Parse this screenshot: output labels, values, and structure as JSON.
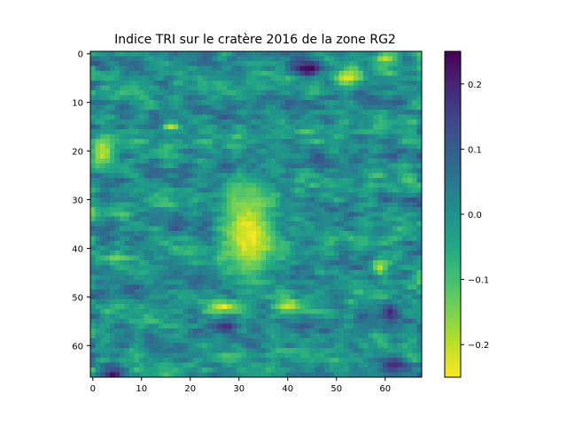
{
  "chart_data": {
    "type": "heatmap",
    "title": "Indice TRI sur le cratère 2016 de la zone RG2",
    "xlabel": "",
    "ylabel": "",
    "grid": false,
    "colormap": "viridis_r",
    "columns": 68,
    "rows": 67,
    "x_ticks": [
      "0",
      "10",
      "20",
      "30",
      "40",
      "50",
      "60"
    ],
    "y_ticks": [
      "0",
      "10",
      "20",
      "30",
      "40",
      "50",
      "60"
    ],
    "value_range": [
      -0.25,
      0.25
    ],
    "colorbar": {
      "ticks": [
        "0.2",
        "0.1",
        "0.0",
        "−0.1",
        "−0.2"
      ],
      "tick_values": [
        0.2,
        0.1,
        0.0,
        -0.1,
        -0.2
      ]
    },
    "features": [
      {
        "label": "low-value plume (crater center)",
        "cx": 32,
        "cy": 37,
        "rx": 6,
        "ry": 11,
        "value": -0.24
      },
      {
        "label": "low-value band",
        "cx": 2,
        "cy": 20,
        "rx": 3,
        "ry": 4,
        "value": -0.2
      },
      {
        "label": "low-value spot",
        "cx": 16,
        "cy": 15,
        "rx": 2,
        "ry": 1,
        "value": -0.22
      },
      {
        "label": "low-value spot",
        "cx": 52,
        "cy": 5,
        "rx": 3,
        "ry": 2,
        "value": -0.22
      },
      {
        "label": "low-value spot",
        "cx": 60,
        "cy": 1,
        "rx": 3,
        "ry": 1.5,
        "value": -0.2
      },
      {
        "label": "low-value streak",
        "cx": 27,
        "cy": 52,
        "rx": 4,
        "ry": 1.5,
        "value": -0.22
      },
      {
        "label": "low-value streak",
        "cx": 40,
        "cy": 52,
        "rx": 3,
        "ry": 1.5,
        "value": -0.22
      },
      {
        "label": "low-value spot",
        "cx": 59,
        "cy": 44,
        "rx": 2,
        "ry": 2,
        "value": -0.2
      },
      {
        "label": "high-value spot",
        "cx": 44,
        "cy": 3,
        "rx": 4,
        "ry": 2,
        "value": 0.24
      },
      {
        "label": "high-value spot",
        "cx": 4,
        "cy": 66,
        "rx": 3,
        "ry": 2,
        "value": 0.22
      },
      {
        "label": "high-value spot",
        "cx": 61,
        "cy": 53,
        "rx": 2,
        "ry": 2,
        "value": 0.2
      },
      {
        "label": "high-value spot",
        "cx": 62,
        "cy": 64,
        "rx": 3,
        "ry": 2,
        "value": 0.18
      },
      {
        "label": "high-value spot",
        "cx": 27,
        "cy": 56,
        "rx": 3,
        "ry": 1.5,
        "value": 0.18
      }
    ]
  }
}
